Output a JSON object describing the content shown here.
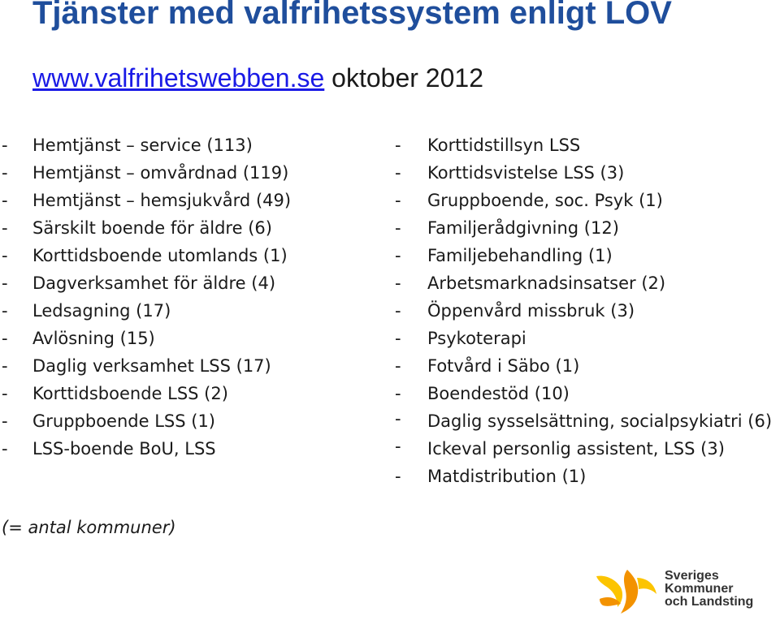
{
  "header": {
    "title": "Tjänster med valfrihetssystem enligt LOV",
    "link_text": "www.valfrihetswebben.se",
    "date_text": " oktober 2012"
  },
  "left_list": [
    "Hemtjänst – service (113)",
    "Hemtjänst – omvårdnad (119)",
    "Hemtjänst – hemsjukvård (49)",
    "Särskilt boende för äldre (6)",
    "Korttidsboende utomlands (1)",
    "Dagverksamhet för äldre (4)",
    "Ledsagning (17)",
    "Avlösning (15)",
    "Daglig verksamhet LSS (17)",
    "Korttidsboende LSS (2)",
    "Gruppboende LSS (1)",
    "LSS-boende BoU, LSS"
  ],
  "right_list": [
    "Korttidstillsyn LSS",
    "Korttidsvistelse LSS (3)",
    "Gruppboende, soc. Psyk (1)",
    "Familjerådgivning (12)",
    "Familjebehandling (1)",
    "Arbetsmarknadsinsatser (2)",
    "Öppenvård missbruk (3)",
    "Psykoterapi",
    "Fotvård i Säbo (1)",
    "Boendestöd (10)",
    "Daglig sysselsättning, socialpsykiatri (6)",
    "Ickeval personlig assistent, LSS (3)",
    "Matdistribution (1)"
  ],
  "note": "(= antal kommuner)",
  "logo": {
    "line1": "Sveriges",
    "line2": "Kommuner",
    "line3": "och Landsting",
    "colors": {
      "orange": "#f39200",
      "yellow": "#fcc400",
      "text": "#333333"
    }
  },
  "bullet_char": "-"
}
